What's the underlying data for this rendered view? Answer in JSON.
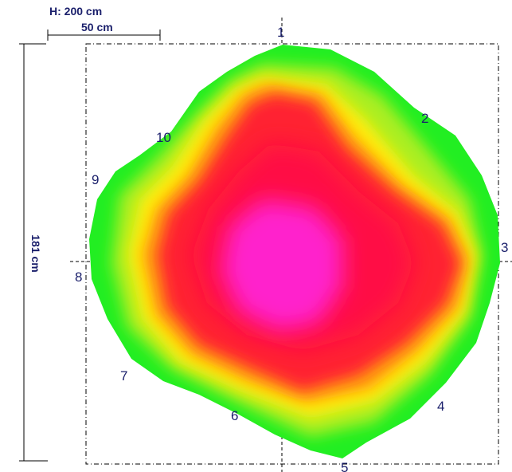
{
  "header": {
    "height_label": "H: 200 cm",
    "scale_label": "50 cm"
  },
  "vertical_label": "181 cm",
  "points": [
    "1",
    "2",
    "3",
    "4",
    "5",
    "6",
    "7",
    "8",
    "9",
    "10"
  ],
  "colors": {
    "label": "#1a1f6b",
    "green": "#22ee22",
    "yellow_green": "#aaee22",
    "yellow": "#ffee11",
    "orange": "#ff9911",
    "red": "#ff2233",
    "crimson": "#ff1144",
    "magenta": "#ff22cc",
    "guide_line": "#000000"
  }
}
